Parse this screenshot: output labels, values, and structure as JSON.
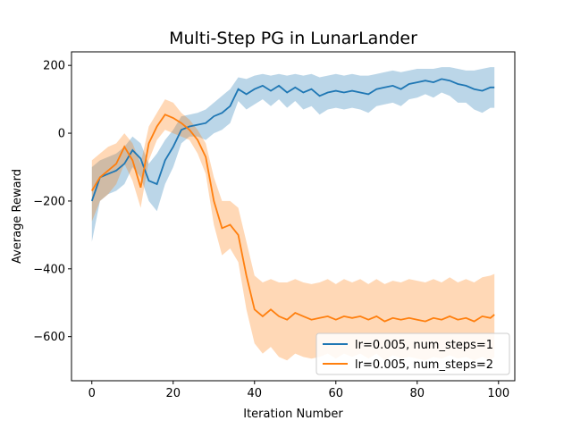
{
  "chart_data": {
    "type": "line",
    "title": "Multi-Step PG in LunarLander",
    "xlabel": "Iteration Number",
    "ylabel": "Average Reward",
    "xlim": [
      -5,
      104
    ],
    "ylim": [
      -730,
      240
    ],
    "xticks": [
      0,
      20,
      40,
      60,
      80,
      100
    ],
    "yticks": [
      200,
      0,
      -200,
      -400,
      -600
    ],
    "grid": false,
    "legend_position": "bottom-right",
    "series": [
      {
        "name": "lr=0.005, num_steps=1",
        "color": "#1f77b4",
        "band_color": "#1f77b4",
        "x": [
          0,
          2,
          4,
          6,
          8,
          10,
          12,
          14,
          16,
          18,
          20,
          22,
          24,
          26,
          28,
          30,
          32,
          34,
          36,
          38,
          40,
          42,
          44,
          46,
          48,
          50,
          52,
          54,
          56,
          58,
          60,
          62,
          64,
          66,
          68,
          70,
          72,
          74,
          76,
          78,
          80,
          82,
          84,
          86,
          88,
          90,
          92,
          94,
          96,
          98,
          99
        ],
        "mean": [
          -200,
          -130,
          -120,
          -110,
          -90,
          -50,
          -75,
          -140,
          -150,
          -80,
          -40,
          10,
          20,
          25,
          30,
          50,
          60,
          80,
          130,
          115,
          130,
          140,
          125,
          140,
          120,
          135,
          120,
          130,
          110,
          120,
          125,
          120,
          125,
          120,
          115,
          130,
          135,
          140,
          130,
          145,
          150,
          155,
          150,
          160,
          155,
          145,
          140,
          130,
          125,
          135,
          135
        ],
        "upper": [
          -100,
          -80,
          -70,
          -60,
          -40,
          -10,
          -30,
          -90,
          -60,
          -20,
          10,
          50,
          55,
          60,
          70,
          90,
          110,
          130,
          165,
          160,
          170,
          175,
          170,
          175,
          170,
          175,
          170,
          175,
          165,
          170,
          175,
          170,
          175,
          170,
          170,
          175,
          180,
          185,
          180,
          185,
          190,
          190,
          190,
          195,
          195,
          190,
          185,
          185,
          190,
          195,
          195
        ],
        "lower": [
          -320,
          -200,
          -180,
          -170,
          -150,
          -100,
          -130,
          -200,
          -230,
          -150,
          -100,
          -30,
          -10,
          -10,
          -20,
          0,
          10,
          30,
          95,
          70,
          85,
          100,
          80,
          100,
          75,
          95,
          70,
          80,
          55,
          70,
          75,
          70,
          75,
          70,
          60,
          80,
          85,
          90,
          80,
          100,
          105,
          115,
          105,
          120,
          110,
          90,
          90,
          70,
          60,
          75,
          75
        ]
      },
      {
        "name": "lr=0.005, num_steps=2",
        "color": "#ff7f0e",
        "band_color": "#ff7f0e",
        "x": [
          0,
          2,
          4,
          6,
          8,
          10,
          12,
          14,
          16,
          18,
          20,
          22,
          24,
          26,
          28,
          30,
          32,
          34,
          36,
          38,
          40,
          42,
          44,
          46,
          48,
          50,
          52,
          54,
          56,
          58,
          60,
          62,
          64,
          66,
          68,
          70,
          72,
          74,
          76,
          78,
          80,
          82,
          84,
          86,
          88,
          90,
          92,
          94,
          96,
          98,
          99
        ],
        "mean": [
          -170,
          -130,
          -110,
          -90,
          -40,
          -80,
          -160,
          -30,
          20,
          55,
          45,
          30,
          10,
          -20,
          -70,
          -200,
          -280,
          -270,
          -300,
          -420,
          -520,
          -540,
          -520,
          -540,
          -550,
          -530,
          -540,
          -550,
          -545,
          -540,
          -550,
          -540,
          -545,
          -540,
          -550,
          -540,
          -555,
          -545,
          -550,
          -545,
          -550,
          -555,
          -545,
          -550,
          -540,
          -550,
          -545,
          -555,
          -540,
          -545,
          -535
        ],
        "upper": [
          -80,
          -60,
          -40,
          -30,
          0,
          -30,
          -90,
          20,
          60,
          100,
          90,
          60,
          40,
          10,
          -30,
          -130,
          -200,
          -200,
          -220,
          -320,
          -420,
          -440,
          -430,
          -440,
          -440,
          -430,
          -440,
          -445,
          -440,
          -430,
          -445,
          -430,
          -440,
          -430,
          -445,
          -430,
          -445,
          -435,
          -440,
          -430,
          -435,
          -440,
          -430,
          -440,
          -425,
          -440,
          -430,
          -440,
          -425,
          -420,
          -415
        ],
        "lower": [
          -260,
          -200,
          -180,
          -150,
          -90,
          -140,
          -220,
          -80,
          -20,
          10,
          0,
          -10,
          -20,
          -60,
          -120,
          -270,
          -360,
          -340,
          -380,
          -520,
          -620,
          -650,
          -630,
          -660,
          -670,
          -650,
          -660,
          -665,
          -660,
          -650,
          -665,
          -650,
          -660,
          -650,
          -665,
          -650,
          -670,
          -655,
          -665,
          -660,
          -665,
          -670,
          -660,
          -665,
          -655,
          -665,
          -660,
          -670,
          -660,
          -670,
          -660
        ]
      }
    ]
  }
}
